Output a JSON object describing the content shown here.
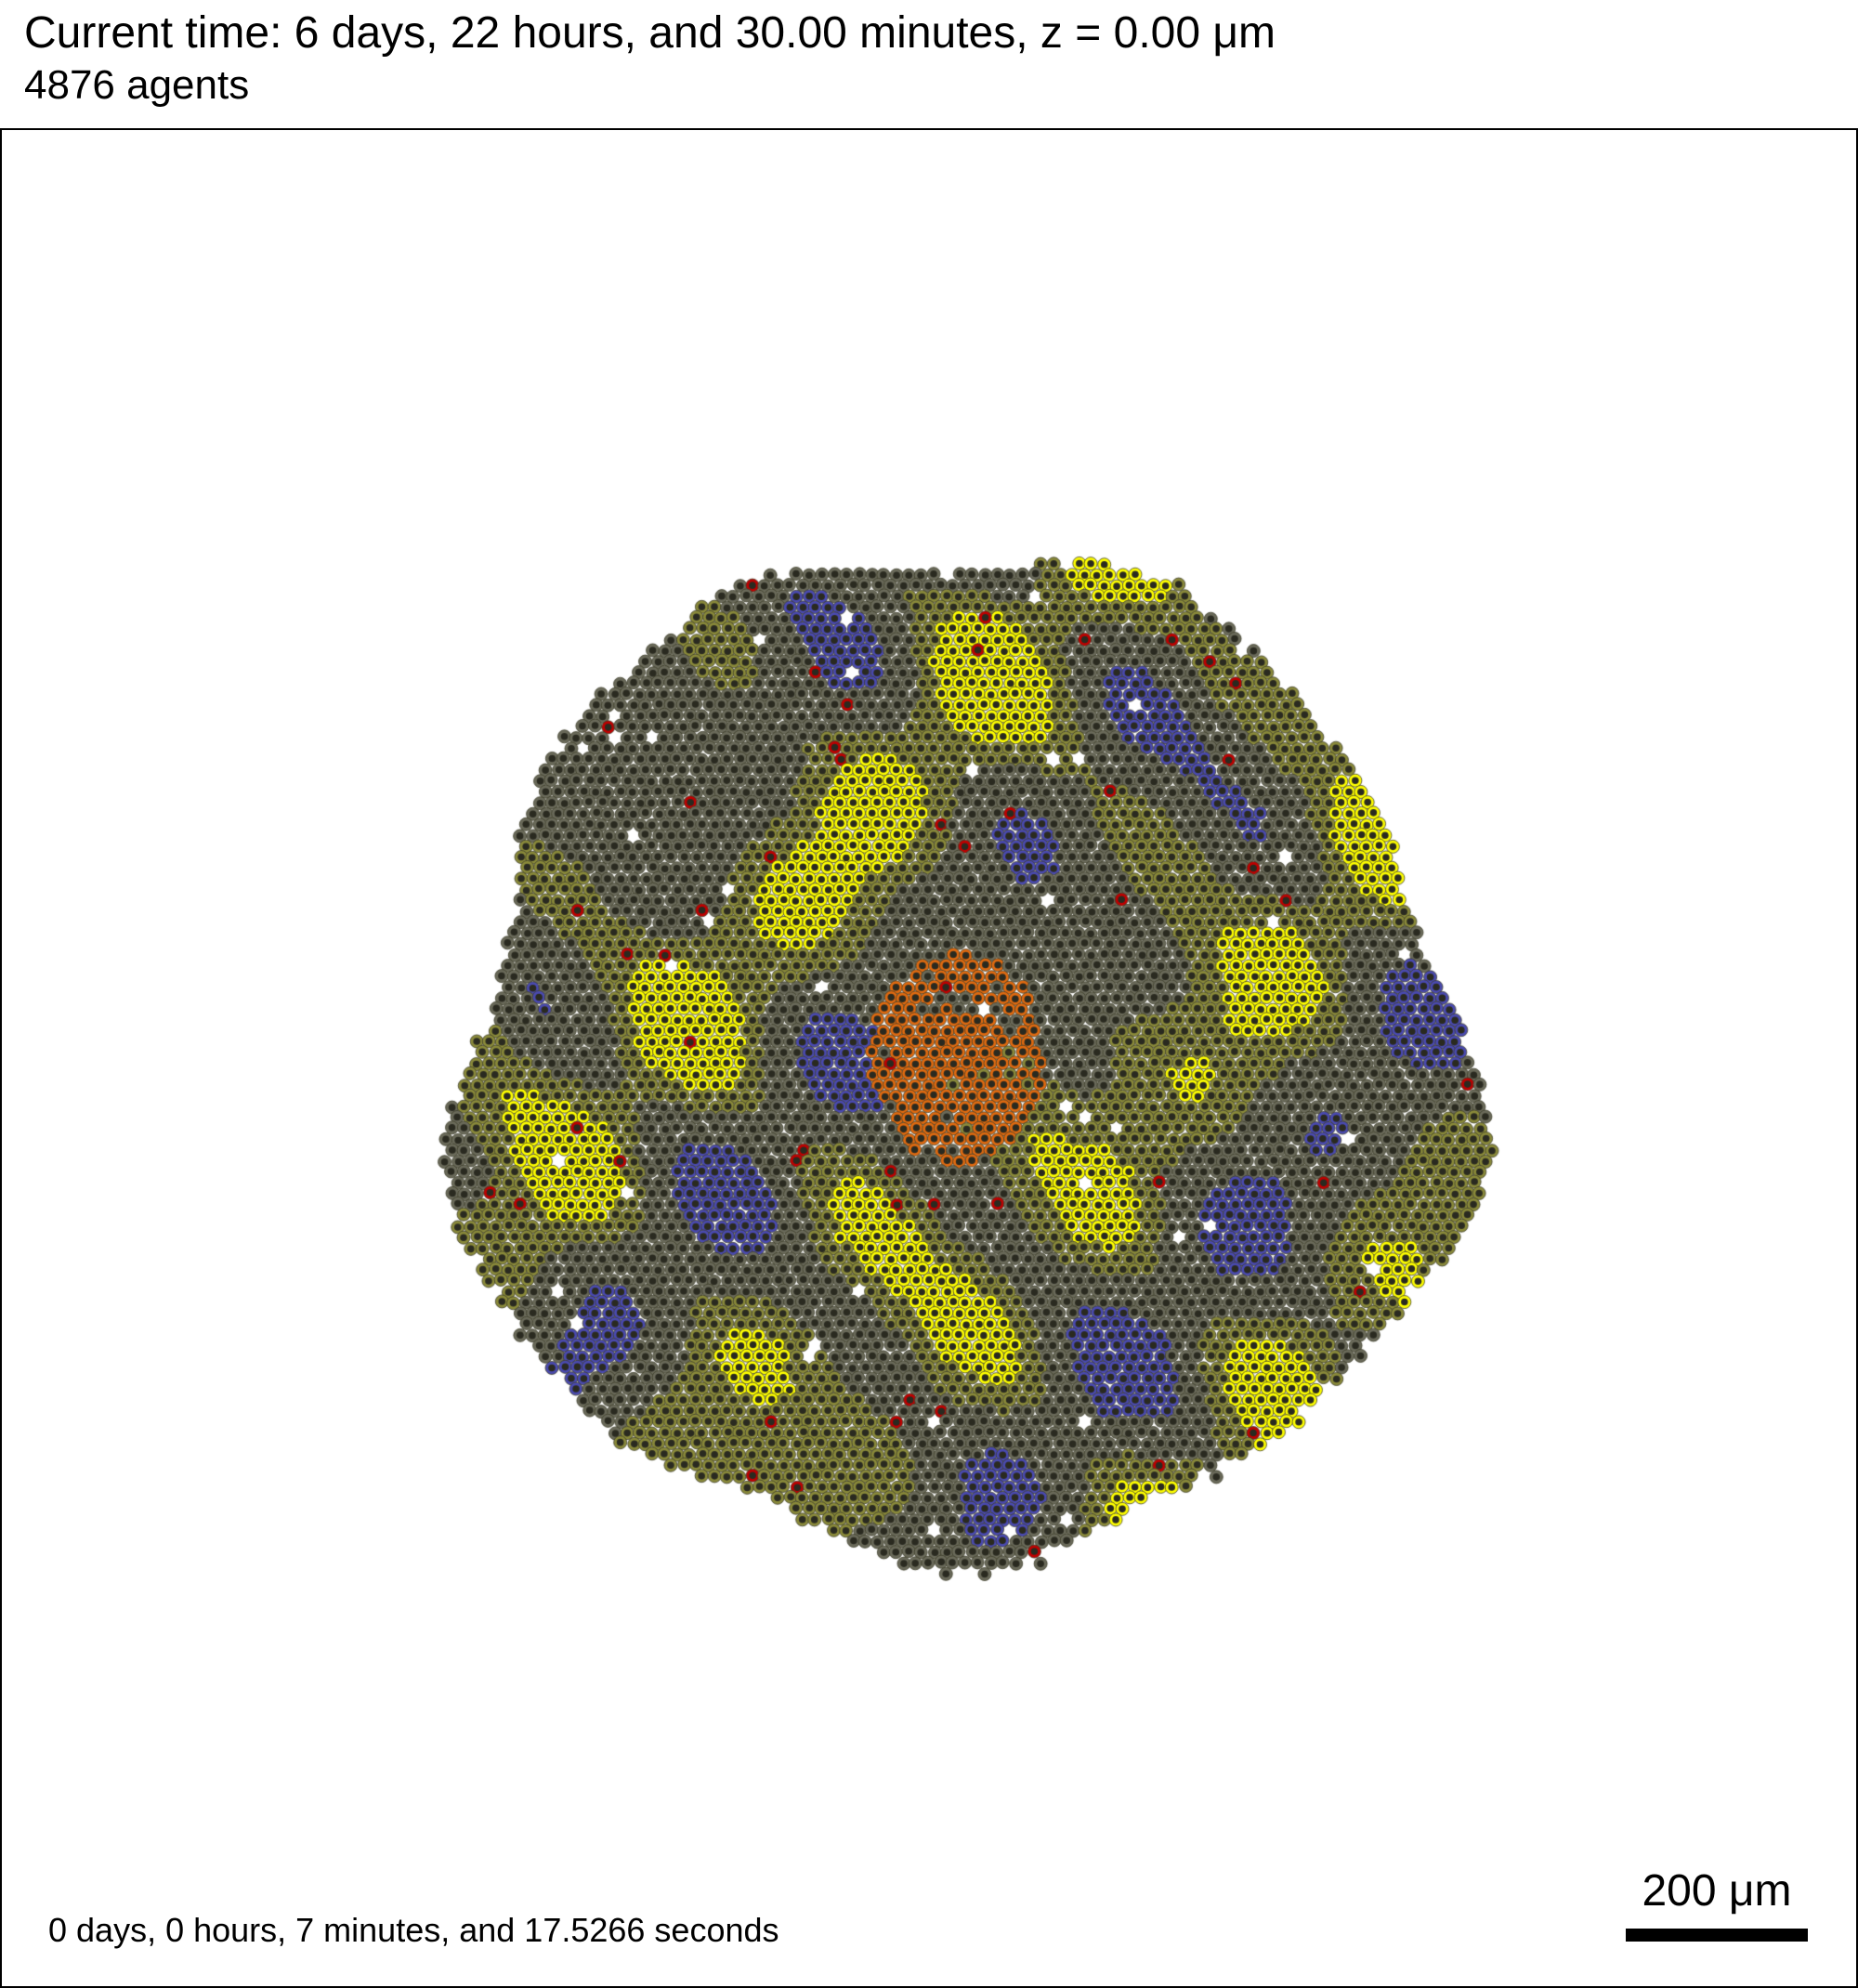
{
  "header": {
    "title": "Current time: 6 days, 22 hours, and 30.00 minutes, z = 0.00 μm",
    "agent_count": "4876 agents"
  },
  "footer": {
    "elapsed_time": "0 days, 0 hours, 7 minutes, and 17.5266 seconds",
    "scale_label": "200 μm"
  },
  "colors": {
    "cell_yellow": "#ffff00",
    "cell_olive": "#8a8a3a",
    "cell_gray": "#6a6a5a",
    "cell_blue": "#4a4ab0",
    "cell_orange": "#e06a10",
    "cell_dead": "#c00000",
    "nucleus": "#2a2a20",
    "outline": "#000000",
    "background": "#ffffff"
  }
}
